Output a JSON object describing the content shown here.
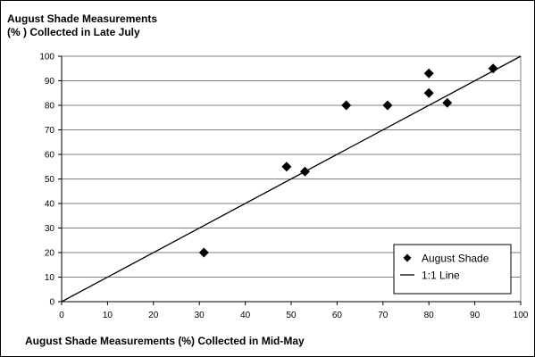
{
  "chart_data": {
    "type": "scatter",
    "title": "August Shade Measurements",
    "subtitle": "(% ) Collected in Late July",
    "xlabel": "August Shade Measurements (%) Collected in Mid-May",
    "ylabel": "",
    "xlim": [
      0,
      100
    ],
    "ylim": [
      0,
      100
    ],
    "xticks": [
      "0",
      "10",
      "20",
      "30",
      "40",
      "50",
      "60",
      "70",
      "80",
      "90",
      "100"
    ],
    "yticks": [
      "0",
      "10",
      "20",
      "30",
      "40",
      "50",
      "60",
      "70",
      "80",
      "90",
      "100"
    ],
    "grid": "horizontal",
    "legend_position": "bottom-right",
    "series": [
      {
        "name": "August Shade",
        "marker": "diamond",
        "color": "#000000",
        "points": [
          {
            "x": 31,
            "y": 20
          },
          {
            "x": 49,
            "y": 55
          },
          {
            "x": 53,
            "y": 53
          },
          {
            "x": 62,
            "y": 80
          },
          {
            "x": 71,
            "y": 80
          },
          {
            "x": 80,
            "y": 93
          },
          {
            "x": 80,
            "y": 85
          },
          {
            "x": 84,
            "y": 81
          },
          {
            "x": 94,
            "y": 95
          }
        ]
      },
      {
        "name": "1:1 Line",
        "type": "line",
        "color": "#000000",
        "points": [
          {
            "x": 0,
            "y": 0
          },
          {
            "x": 100,
            "y": 100
          }
        ]
      }
    ]
  }
}
